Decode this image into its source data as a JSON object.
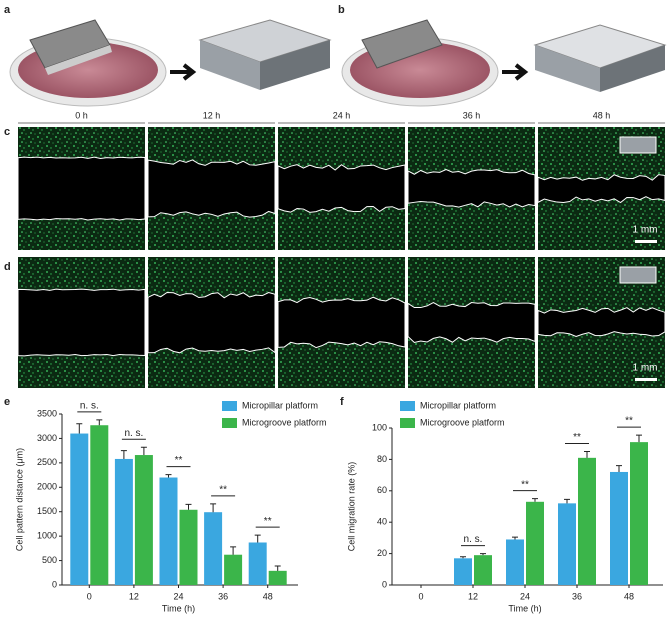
{
  "panel_labels": [
    "a",
    "b",
    "c",
    "d",
    "e",
    "f"
  ],
  "time_labels": [
    "0 h",
    "12 h",
    "24 h",
    "36 h",
    "48 h"
  ],
  "scale_bar_labels": [
    "1 mm",
    "1 mm"
  ],
  "chart_data": [
    {
      "type": "bar",
      "xlabel": "Time (h)",
      "ylabel": "Cell pattern distance (μm)",
      "categories": [
        "0",
        "12",
        "24",
        "36",
        "48"
      ],
      "series": [
        {
          "name": "Micropillar platform",
          "color": "#3aa7e0",
          "values": [
            3100,
            2580,
            2200,
            1490,
            870
          ],
          "errors": [
            200,
            170,
            60,
            170,
            150
          ]
        },
        {
          "name": "Microgroove platform",
          "color": "#3bb54a",
          "values": [
            3270,
            2660,
            1540,
            620,
            290
          ],
          "errors": [
            110,
            160,
            110,
            160,
            100
          ]
        }
      ],
      "significance": [
        "n. s.",
        "n. s.",
        "**",
        "**",
        "**"
      ],
      "ylim": [
        0,
        3500
      ],
      "yticks": [
        0,
        500,
        1000,
        1500,
        2000,
        2500,
        3000,
        3500
      ],
      "legend": "upper right"
    },
    {
      "type": "bar",
      "xlabel": "Time (h)",
      "ylabel": "Cell migration rate (%)",
      "categories": [
        "0",
        "12",
        "24",
        "36",
        "48"
      ],
      "series": [
        {
          "name": "Micropillar platform",
          "color": "#3aa7e0",
          "values": [
            0,
            17,
            29,
            52,
            72
          ],
          "errors": [
            0,
            1,
            1.5,
            2.5,
            4
          ]
        },
        {
          "name": "Microgroove platform",
          "color": "#3bb54a",
          "values": [
            0,
            19,
            53,
            81,
            91
          ],
          "errors": [
            0,
            1,
            2,
            4,
            4.5
          ]
        }
      ],
      "significance": [
        null,
        "n. s.",
        "**",
        "**",
        "**"
      ],
      "ylim": [
        0,
        100
      ],
      "yticks": [
        0,
        20,
        40,
        60,
        80,
        100
      ],
      "legend": "upper left"
    }
  ]
}
